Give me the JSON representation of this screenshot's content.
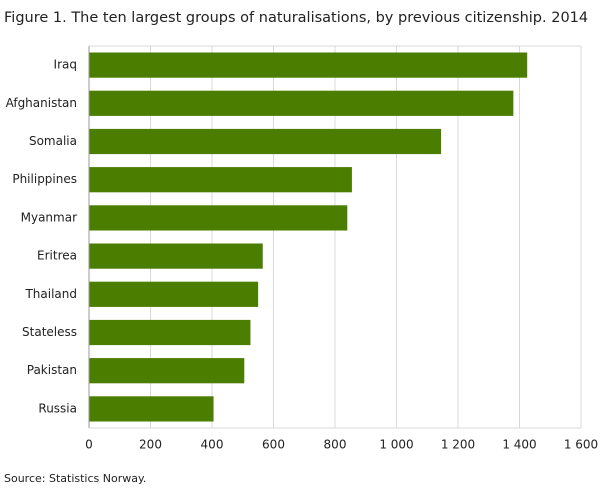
{
  "chart_data": {
    "type": "bar",
    "orientation": "horizontal",
    "title": "Figure 1. The ten largest groups of naturalisations, by previous citizenship. 2014",
    "source": "Source: Statistics Norway.",
    "categories": [
      "Iraq",
      "Afghanistan",
      "Somalia",
      "Philippines",
      "Myanmar",
      "Eritrea",
      "Thailand",
      "Stateless",
      "Pakistan",
      "Russia"
    ],
    "values": [
      1425,
      1380,
      1145,
      855,
      840,
      565,
      550,
      525,
      505,
      405
    ],
    "color": "#4a7d00",
    "xlim": [
      0,
      1600
    ],
    "xticks": [
      0,
      200,
      400,
      600,
      800,
      {
        "value": 1000,
        "label": "1 000"
      },
      {
        "value": 1200,
        "label": "1 200"
      },
      {
        "value": 1400,
        "label": "1 400"
      },
      {
        "value": 1600,
        "label": "1 600"
      }
    ],
    "grid": true
  }
}
